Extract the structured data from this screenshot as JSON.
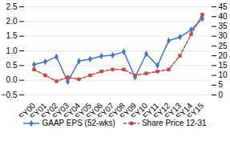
{
  "chart_data": {
    "type": "line",
    "categories": [
      "FY00",
      "FY01",
      "FY02",
      "FY03",
      "FY04",
      "FY05",
      "FY06",
      "FY07",
      "FY08",
      "FY09",
      "FY10",
      "FY11",
      "FY12",
      "FY13",
      "FY14",
      "FY15"
    ],
    "series": [
      {
        "name": "GAAP EPS (52-wks)",
        "color": "#4472C4",
        "marker": "diamond",
        "line_style": "solid",
        "values": [
          0.53,
          0.63,
          0.8,
          -0.05,
          0.65,
          0.72,
          0.82,
          0.85,
          0.97,
          0.1,
          0.9,
          0.5,
          1.35,
          1.47,
          1.72,
          2.1
        ]
      },
      {
        "name": "Share Price 12-31",
        "color": "#BE4B48",
        "marker": "square",
        "line_style": "dashed",
        "axis": "y2",
        "values": [
          13,
          10,
          7,
          9,
          8,
          10,
          12,
          13,
          13,
          10,
          11,
          12,
          13,
          20,
          31,
          41
        ]
      }
    ],
    "ylim": [
      -0.5,
      2.5
    ],
    "yticks": [
      {
        "value": -0.5,
        "label": "−0.5"
      },
      {
        "value": 0.0,
        "label": "0.0"
      },
      0.5,
      {
        "value": 1.0,
        "label": "1.0"
      },
      1.5,
      {
        "value": 2.0,
        "label": "2.0"
      },
      2.5
    ],
    "y2lim": [
      0,
      45
    ],
    "y2ticks": [
      0,
      5,
      10,
      15,
      20,
      25,
      30,
      35,
      40,
      45
    ],
    "grid": true,
    "legend": "bottom"
  }
}
